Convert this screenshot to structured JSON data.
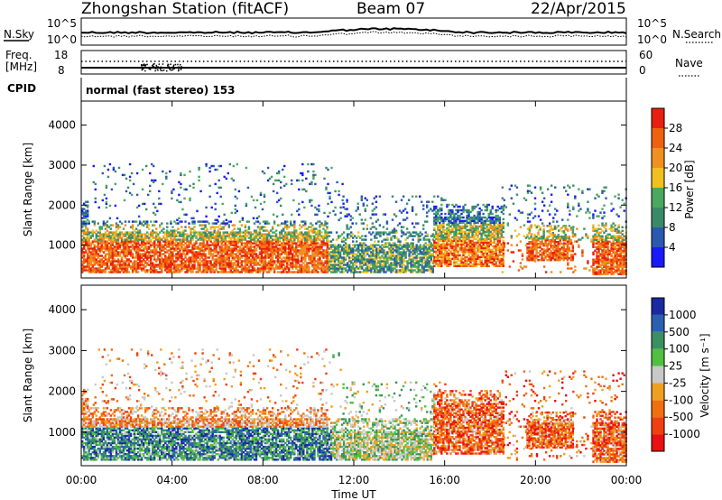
{
  "header": {
    "station": "Zhongshan Station (fitACF)",
    "beam": "Beam 07",
    "date": "22/Apr/2015"
  },
  "noise_panel": {
    "left_label": "N.Sky",
    "right_label": "N.Search",
    "left_ticks": [
      "10^5",
      "10^0"
    ],
    "right_ticks": [
      "10^5",
      "10^0"
    ]
  },
  "freq_panel": {
    "left_label_1": "Freq.",
    "left_label_2": "[MHz]",
    "right_label": "Nave",
    "left_ticks": [
      "18",
      "8"
    ],
    "right_ticks": [
      "60",
      "0"
    ]
  },
  "cpid_panel": {
    "label": "CPID",
    "value": "normal (fast stereo) 153"
  },
  "colors": {
    "power": [
      "#1a1aff",
      "#2a5ab0",
      "#3a8a6a",
      "#4aa860",
      "#f0c020",
      "#f09020",
      "#f06010",
      "#e82010"
    ],
    "velocity": [
      "#e81010",
      "#f04010",
      "#f07010",
      "#f0a020",
      "#c8c8c8",
      "#50c040",
      "#3a9060",
      "#2a60b0",
      "#1a2aa0"
    ]
  },
  "chart_data": [
    {
      "type": "heatmap",
      "name": "power",
      "ylabel": "Slant Range [km]",
      "ylim": [
        180,
        4600
      ],
      "yticks": [
        "1000",
        "2000",
        "3000",
        "4000"
      ],
      "colorbar_label": "Power [dB]",
      "colorbar_ticks": [
        "4",
        "8",
        "12",
        "16",
        "20",
        "24",
        "28"
      ]
    },
    {
      "type": "heatmap",
      "name": "velocity",
      "ylabel": "Slant Range [km]",
      "ylim": [
        180,
        4600
      ],
      "yticks": [
        "1000",
        "2000",
        "3000",
        "4000"
      ],
      "colorbar_label": "Velocity [m s⁻¹]",
      "colorbar_ticks": [
        "1000",
        "500",
        "100",
        "25",
        "-25",
        "-100",
        "-500",
        "-1000"
      ]
    }
  ],
  "time_axis": {
    "xlabel": "Time UT",
    "xticks": [
      "00:00",
      "04:00",
      "08:00",
      "12:00",
      "16:00",
      "20:00",
      "00:00"
    ],
    "xlim_hours": [
      0,
      24
    ]
  }
}
